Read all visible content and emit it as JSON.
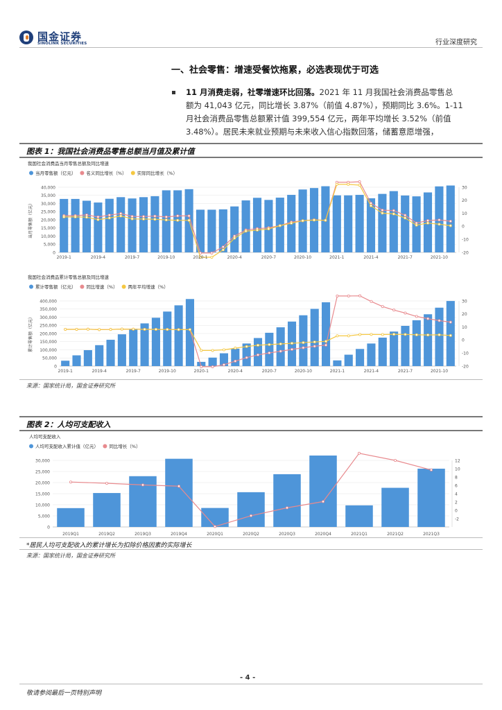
{
  "header": {
    "logo_name": "国金证券",
    "logo_sub": "SINOLINK SECURITIES",
    "report_type": "行业深度研究"
  },
  "section": {
    "title": "一、社会零售：增速受餐饮拖累，必选表现优于可选",
    "bullet_bold": "11 月消费走弱，社零增速环比回落。",
    "bullet_line1": "2021 年 11 月我国社会消费品零售总",
    "bullet_line2": "额为 41,043 亿元，同比增长 3.87%（前值 4.87%），预期同比 3.6%。1-11",
    "bullet_line3": "月社会消费品零售总额累计值 399,554 亿元，两年平均增长 3.52%（前值",
    "bullet_line4": "3.48%）。居民未来就业预期与未来收入信心指数回落，储蓄意愿增强，"
  },
  "figure1": {
    "title": "图表 1：我国社会消费品零售总额当月值及累计值",
    "source": "来源：国家统计局，国金证券研究所"
  },
  "figure2": {
    "title": "图表 2：人均可支配收入",
    "note": "*居民人均可支配收入的累计增长为扣除价格因素的实际增长",
    "source": "来源：国家统计局，国金证券研究所"
  },
  "footer": {
    "page": "- 4 -",
    "disclaimer": "敬请参阅最后一页特别声明"
  },
  "colors": {
    "bar": "#4e95d9",
    "red": "#e88a8e",
    "yellow": "#f5c842",
    "grid": "#e6e6e6"
  },
  "chart_data": [
    {
      "type": "bar",
      "title": "我国社会消费品当月零售总额及同比增速",
      "ylabel": "当月零售额（亿元）",
      "ylim": [
        0,
        40000
      ],
      "y2lim": [
        -20,
        30
      ],
      "yticks": [
        0,
        5000,
        10000,
        15000,
        20000,
        25000,
        30000,
        35000,
        40000
      ],
      "y2ticks": [
        -20,
        -10,
        0,
        10,
        20,
        30
      ],
      "categories": [
        "2019-1",
        "2019-2",
        "2019-3",
        "2019-4",
        "2019-5",
        "2019-6",
        "2019-7",
        "2019-8",
        "2019-9",
        "2019-10",
        "2019-11",
        "2019-12",
        "2020-1",
        "2020-2",
        "2020-3",
        "2020-4",
        "2020-5",
        "2020-6",
        "2020-7",
        "2020-8",
        "2020-9",
        "2020-10",
        "2020-11",
        "2020-12",
        "2021-1",
        "2021-2",
        "2021-3",
        "2021-4",
        "2021-5",
        "2021-6",
        "2021-7",
        "2021-8",
        "2021-9",
        "2021-10",
        "2021-11"
      ],
      "xtick_labels": [
        "2019-1",
        "2019-4",
        "2019-7",
        "2019-10",
        "2020-1",
        "2020-4",
        "2020-7",
        "2020-10",
        "2021-1",
        "2021-4",
        "2021-7",
        "2021-10"
      ],
      "series": [
        {
          "name": "当月零售额（亿元）",
          "kind": "bar",
          "axis": "left",
          "values": [
            32800,
            32800,
            31700,
            30600,
            32900,
            33900,
            33100,
            33900,
            34500,
            38100,
            38100,
            38800,
            26200,
            26200,
            26400,
            28200,
            31900,
            33500,
            32200,
            33600,
            35300,
            38600,
            39500,
            40600,
            35000,
            35000,
            35300,
            33200,
            35900,
            37600,
            34900,
            34400,
            36800,
            40500,
            41043
          ]
        },
        {
          "name": "名义同比增长（%）",
          "kind": "line",
          "axis": "right",
          "color": "#e88a8e",
          "values": [
            8.2,
            8.2,
            8.7,
            7.2,
            8.6,
            9.8,
            7.6,
            7.5,
            7.8,
            7.2,
            8.0,
            8.0,
            -20.5,
            -20.5,
            -15.8,
            -7.5,
            -2.8,
            -1.8,
            -1.1,
            0.5,
            3.3,
            4.3,
            5.0,
            4.6,
            33.8,
            33.8,
            34.2,
            17.7,
            12.4,
            12.1,
            8.5,
            2.5,
            4.4,
            4.9,
            3.9
          ]
        },
        {
          "name": "实际同比增长（%）",
          "kind": "line",
          "axis": "right",
          "color": "#f5c842",
          "values": [
            7.2,
            7.2,
            7.0,
            5.1,
            6.4,
            7.9,
            5.7,
            5.6,
            5.4,
            4.9,
            4.6,
            4.6,
            -23.7,
            -23.7,
            -18.1,
            -9.1,
            -3.7,
            -2.9,
            -2.0,
            0.5,
            2.4,
            4.3,
            4.8,
            4.6,
            32.2,
            32.2,
            31.6,
            15.8,
            10.1,
            9.5,
            6.4,
            0.9,
            2.5,
            1.6,
            0.5
          ]
        }
      ]
    },
    {
      "type": "bar",
      "title": "我国社会消费品累计零售总额及同比增速",
      "ylabel": "累计零售额（亿元）",
      "ylim": [
        0,
        400000
      ],
      "y2lim": [
        -20,
        30
      ],
      "yticks": [
        0,
        50000,
        100000,
        150000,
        200000,
        250000,
        300000,
        350000,
        400000
      ],
      "y2ticks": [
        -20,
        -10,
        0,
        10,
        20,
        30
      ],
      "categories": [
        "2019-1",
        "2019-2",
        "2019-3",
        "2019-4",
        "2019-5",
        "2019-6",
        "2019-7",
        "2019-8",
        "2019-9",
        "2019-10",
        "2019-11",
        "2019-12",
        "2020-1",
        "2020-2",
        "2020-3",
        "2020-4",
        "2020-5",
        "2020-6",
        "2020-7",
        "2020-8",
        "2020-9",
        "2020-10",
        "2020-11",
        "2020-12",
        "2021-1",
        "2021-2",
        "2021-3",
        "2021-4",
        "2021-5",
        "2021-6",
        "2021-7",
        "2021-8",
        "2021-9",
        "2021-10",
        "2021-11"
      ],
      "xtick_labels": [
        "2019-1",
        "2019-4",
        "2019-7",
        "2019-10",
        "2020-1",
        "2020-4",
        "2020-7",
        "2020-10",
        "2021-1",
        "2021-4",
        "2021-7",
        "2021-10"
      ],
      "series": [
        {
          "name": "累计零售额（亿元）",
          "kind": "bar",
          "axis": "left",
          "values": [
            33000,
            66000,
            97800,
            128500,
            161500,
            195200,
            228600,
            262100,
            296700,
            334700,
            372900,
            411600,
            26000,
            52100,
            78600,
            106800,
            138700,
            172300,
            204500,
            238100,
            273300,
            311900,
            351400,
            391800,
            35000,
            70000,
            105200,
            138600,
            174700,
            211900,
            246800,
            281400,
            318100,
            358500,
            399554
          ]
        },
        {
          "name": "同比增速（%）",
          "kind": "line",
          "axis": "right",
          "color": "#e88a8e",
          "values": [
            8.2,
            8.2,
            8.3,
            8.0,
            8.1,
            8.4,
            8.3,
            8.2,
            8.2,
            8.1,
            8.0,
            8.0,
            -20.5,
            -20.5,
            -19.0,
            -16.2,
            -13.5,
            -11.4,
            -9.9,
            -8.6,
            -7.2,
            -5.9,
            -4.8,
            -3.9,
            33.8,
            33.8,
            33.9,
            29.6,
            25.7,
            23.0,
            20.7,
            18.1,
            16.4,
            14.9,
            13.7
          ]
        },
        {
          "name": "两年平均增速（%）",
          "kind": "line",
          "axis": "right",
          "color": "#f5c842",
          "values": [
            8.2,
            8.2,
            8.3,
            8.0,
            8.1,
            8.4,
            8.3,
            8.2,
            8.2,
            8.1,
            8.0,
            8.0,
            -8.0,
            -8.0,
            -7.5,
            -6.2,
            -5.0,
            -4.0,
            -3.5,
            -3.0,
            -2.5,
            -2.0,
            -1.5,
            -1.0,
            3.2,
            3.2,
            4.2,
            4.3,
            4.2,
            4.4,
            4.3,
            4.0,
            3.9,
            4.0,
            3.5
          ]
        }
      ]
    },
    {
      "type": "bar",
      "title": "人均可支配收入",
      "ylim": [
        0,
        30000
      ],
      "y2lim": [
        -4,
        12
      ],
      "yticks": [
        0,
        5000,
        10000,
        15000,
        20000,
        25000,
        30000
      ],
      "ytick_labels": [
        "0",
        "5,000",
        "10,000",
        "15,000",
        "20,000",
        "25,000",
        "30,000"
      ],
      "y2ticks": [
        -2,
        0,
        2,
        4,
        6,
        8,
        10,
        12
      ],
      "categories": [
        "2019Q1",
        "2019Q2",
        "2019Q3",
        "2019Q4",
        "2020Q1",
        "2020Q2",
        "2020Q3",
        "2020Q4",
        "2021Q1",
        "2021Q2",
        "2021Q3"
      ],
      "series": [
        {
          "name": "人均可支配收入累计值（亿元）",
          "kind": "bar",
          "axis": "left",
          "values": [
            8493,
            15294,
            22882,
            30733,
            8561,
            15666,
            23781,
            32189,
            9730,
            17642,
            26265
          ]
        },
        {
          "name": "同比增长（%）",
          "kind": "line",
          "axis": "right",
          "color": "#e88a8e",
          "values": [
            6.8,
            6.5,
            6.1,
            5.8,
            -3.9,
            -1.3,
            0.6,
            2.1,
            13.7,
            12.0,
            9.7
          ]
        }
      ]
    }
  ]
}
